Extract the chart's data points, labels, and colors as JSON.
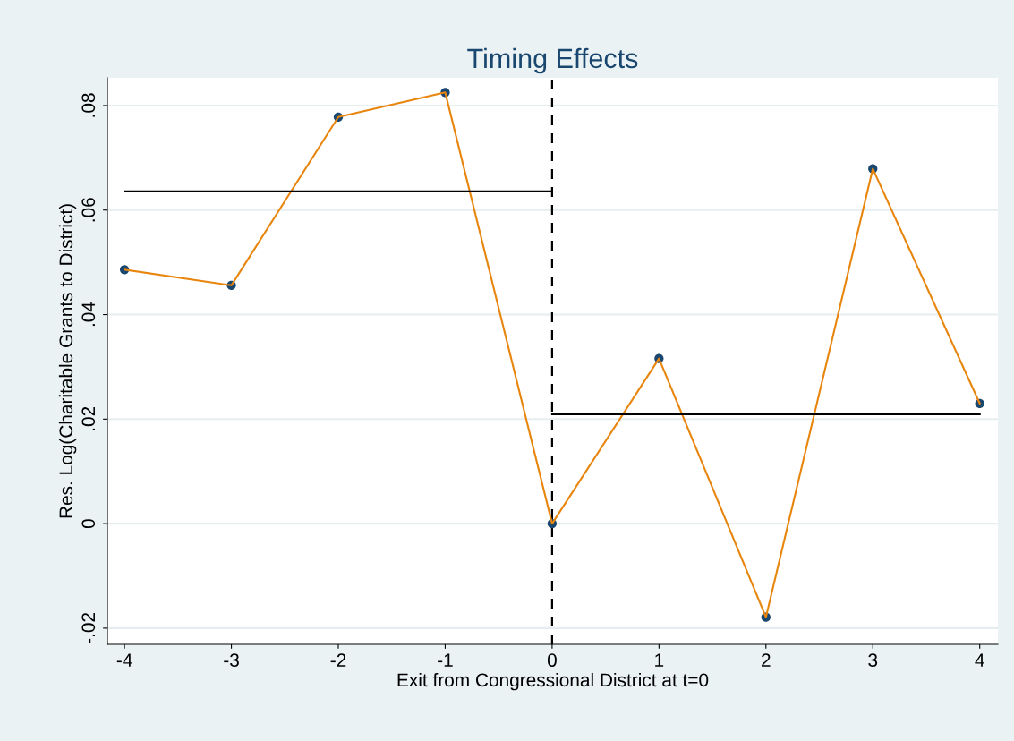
{
  "chart_data": {
    "type": "line",
    "title": "Timing Effects",
    "xlabel": "Exit from Congressional District at t=0",
    "ylabel": "Res. Log(Charitable Grants to District)",
    "x": [
      -4,
      -3,
      -2,
      -1,
      0,
      1,
      2,
      3,
      4
    ],
    "series": [
      {
        "color": "#e8850c",
        "colors": [
          "#1a476f",
          "#1a476f",
          "#1a476f",
          "#1a476f",
          "#1a476f",
          "#1a476f",
          "#1a476f",
          "#1a476f",
          "#1a476f"
        ],
        "marker": "circle",
        "values": [
          0.0486,
          0.0456,
          0.0778,
          0.0825,
          0.0,
          0.0316,
          -0.0179,
          0.0679,
          0.023
        ]
      },
      {
        "color": "#000000",
        "marker": "none",
        "x": [
          -4,
          0
        ],
        "values": [
          0.0636,
          0.0636
        ]
      },
      {
        "color": "#000000",
        "marker": "none",
        "x": [
          0,
          4
        ],
        "values": [
          0.0209,
          0.0209
        ]
      }
    ],
    "ref_lines": [
      {
        "axis": "x",
        "value": 0,
        "color": "#000000",
        "line_style": "dashed"
      }
    ],
    "xlim": [
      -4.16,
      4.17
    ],
    "ylim": [
      -0.0231,
      0.0853
    ],
    "xticks": [
      -4,
      -3,
      -2,
      -1,
      0,
      1,
      2,
      3,
      4
    ],
    "yticks": [
      {
        "value": -0.02,
        "label": "-.02"
      },
      0,
      {
        "value": 0.02,
        "label": ".02"
      },
      {
        "value": 0.04,
        "label": ".04"
      },
      {
        "value": 0.06,
        "label": ".06"
      },
      {
        "value": 0.08,
        "label": ".08"
      }
    ],
    "grid": "y",
    "legend": false
  }
}
